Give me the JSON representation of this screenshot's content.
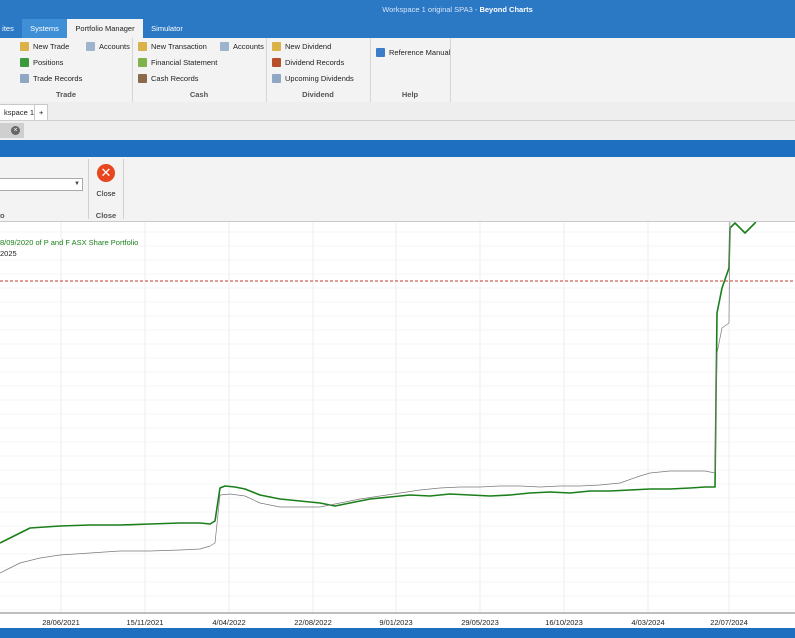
{
  "window": {
    "title_prefix": "Workspace 1 original SPA3 - ",
    "title_app": "Beyond Charts"
  },
  "tabs": [
    {
      "label": "ites"
    },
    {
      "label": "Systems"
    },
    {
      "label": "Portfolio Manager"
    },
    {
      "label": "Simulator"
    }
  ],
  "ribbon": {
    "trade": {
      "label": "Trade",
      "items": [
        "New Trade",
        "Positions",
        "Trade Records"
      ],
      "accounts": "Accounts"
    },
    "cash": {
      "label": "Cash",
      "items": [
        "New Transaction",
        "Financial Statement",
        "Cash Records"
      ],
      "accounts": "Accounts"
    },
    "dividend": {
      "label": "Dividend",
      "items": [
        "New Dividend",
        "Dividend Records",
        "Upcoming Dividends"
      ]
    },
    "help": {
      "label": "Help",
      "items": [
        "Reference Manual"
      ]
    }
  },
  "workspace": {
    "tab_label": "kspace 1",
    "add_label": "+"
  },
  "doc": {
    "close_glyph": "×"
  },
  "inner": {
    "close_label": "Close",
    "close_group": "Close",
    "left_group": "o"
  },
  "chart_data": {
    "type": "line",
    "legend_line1": "8/09/2020  of P and F ASX Share Portfolio",
    "legend_line2": "2025",
    "x_ticks": [
      "28/06/2021",
      "15/11/2021",
      "4/04/2022",
      "22/08/2022",
      "9/01/2023",
      "29/05/2023",
      "16/10/2023",
      "4/03/2024",
      "22/07/2024"
    ],
    "reference_line": {
      "color": "#c0392b",
      "style": "dashed"
    },
    "series": [
      {
        "color": "#1a7f1a",
        "width": 1.6,
        "points": [
          [
            0,
            70
          ],
          [
            10,
            75
          ],
          [
            20,
            80
          ],
          [
            30,
            85
          ],
          [
            45,
            86
          ],
          [
            60,
            87
          ],
          [
            90,
            88
          ],
          [
            120,
            88
          ],
          [
            150,
            89
          ],
          [
            180,
            90
          ],
          [
            200,
            90
          ],
          [
            210,
            89
          ],
          [
            215,
            92
          ],
          [
            220,
            125
          ],
          [
            225,
            127
          ],
          [
            235,
            126
          ],
          [
            245,
            124
          ],
          [
            260,
            118
          ],
          [
            280,
            114
          ],
          [
            300,
            112
          ],
          [
            320,
            110
          ],
          [
            335,
            107
          ],
          [
            350,
            110
          ],
          [
            370,
            114
          ],
          [
            390,
            116
          ],
          [
            410,
            118
          ],
          [
            430,
            117
          ],
          [
            450,
            119
          ],
          [
            470,
            118
          ],
          [
            490,
            117
          ],
          [
            510,
            118
          ],
          [
            530,
            120
          ],
          [
            550,
            121
          ],
          [
            570,
            120
          ],
          [
            590,
            122
          ],
          [
            610,
            122
          ],
          [
            630,
            123
          ],
          [
            650,
            124
          ],
          [
            670,
            124
          ],
          [
            690,
            125
          ],
          [
            705,
            126
          ],
          [
            715,
            126
          ],
          [
            717,
            300
          ],
          [
            722,
            325
          ],
          [
            729,
            345
          ],
          [
            730,
            385
          ],
          [
            735,
            390
          ],
          [
            740,
            385
          ],
          [
            745,
            380
          ],
          [
            750,
            385
          ],
          [
            755,
            390
          ],
          [
            760,
            400
          ],
          [
            770,
            395
          ],
          [
            780,
            408
          ],
          [
            790,
            407
          ],
          [
            795,
            405
          ]
        ]
      },
      {
        "color": "#7a7a7a",
        "width": 0.7,
        "points": [
          [
            0,
            40
          ],
          [
            10,
            45
          ],
          [
            20,
            50
          ],
          [
            40,
            55
          ],
          [
            60,
            58
          ],
          [
            90,
            60
          ],
          [
            120,
            62
          ],
          [
            150,
            62
          ],
          [
            180,
            63
          ],
          [
            200,
            64
          ],
          [
            210,
            67
          ],
          [
            215,
            70
          ],
          [
            220,
            118
          ],
          [
            230,
            119
          ],
          [
            245,
            117
          ],
          [
            260,
            110
          ],
          [
            280,
            106
          ],
          [
            300,
            106
          ],
          [
            320,
            106
          ],
          [
            340,
            110
          ],
          [
            360,
            114
          ],
          [
            380,
            117
          ],
          [
            400,
            120
          ],
          [
            420,
            123
          ],
          [
            440,
            125
          ],
          [
            460,
            126
          ],
          [
            480,
            126
          ],
          [
            500,
            127
          ],
          [
            520,
            127
          ],
          [
            540,
            126
          ],
          [
            560,
            127
          ],
          [
            580,
            127
          ],
          [
            600,
            128
          ],
          [
            620,
            130
          ],
          [
            640,
            137
          ],
          [
            650,
            140
          ],
          [
            670,
            142
          ],
          [
            690,
            142
          ],
          [
            705,
            142
          ],
          [
            715,
            140
          ],
          [
            717,
            260
          ],
          [
            722,
            285
          ],
          [
            729,
            290
          ],
          [
            730,
            400
          ],
          [
            735,
            405
          ],
          [
            740,
            410
          ],
          [
            745,
            405
          ],
          [
            750,
            415
          ],
          [
            755,
            420
          ],
          [
            760,
            425
          ],
          [
            770,
            428
          ],
          [
            780,
            440
          ],
          [
            790,
            430
          ],
          [
            795,
            425
          ]
        ]
      }
    ]
  }
}
